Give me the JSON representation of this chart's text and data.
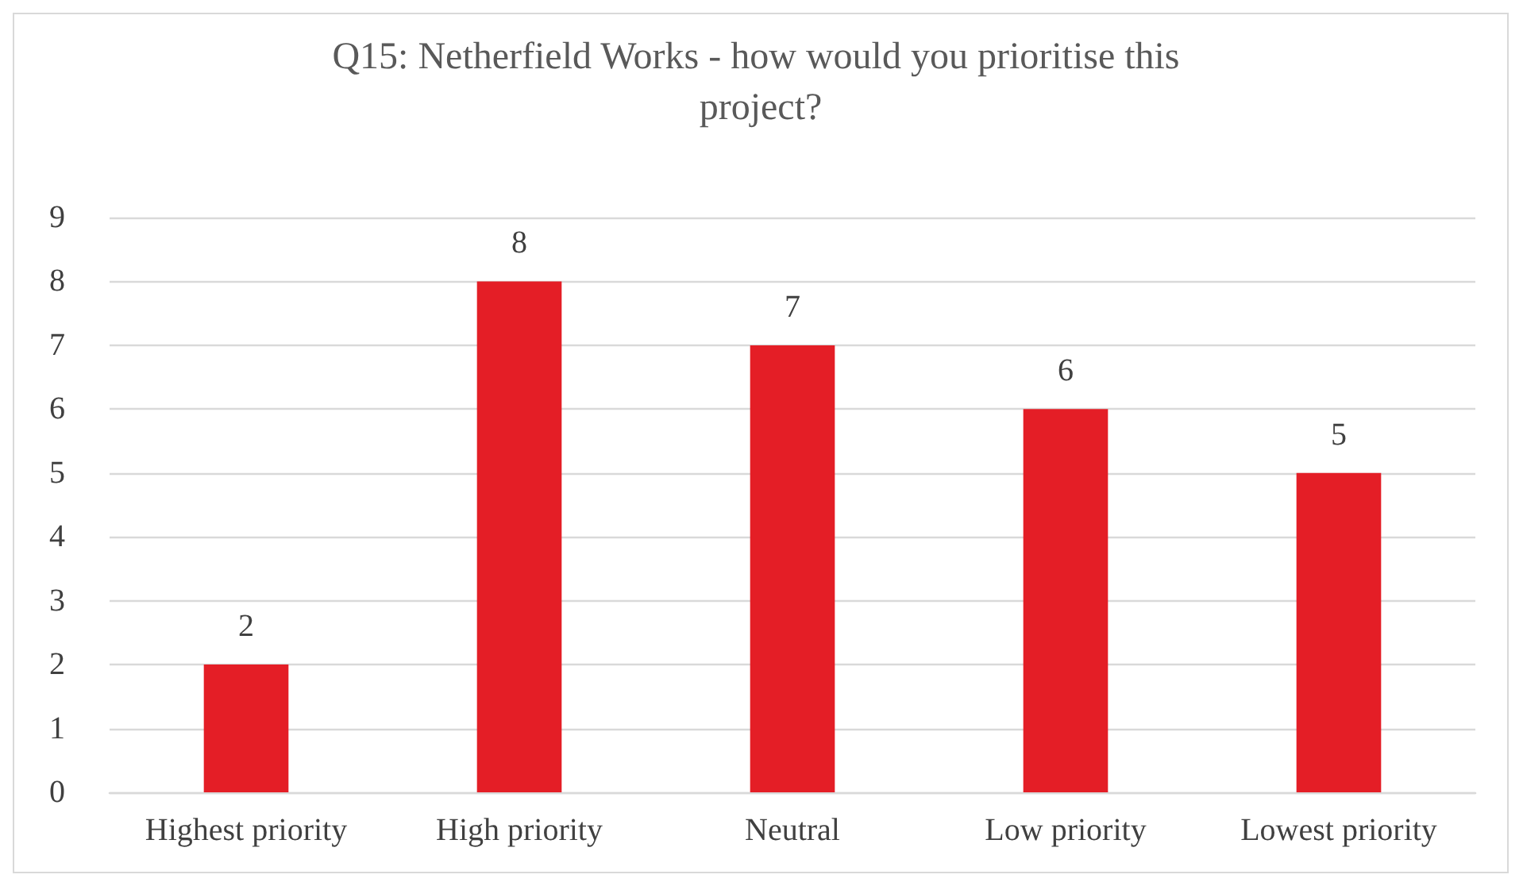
{
  "chart_data": {
    "type": "bar",
    "title": "Q15: Netherfield Works - how would you prioritise this project?",
    "categories": [
      "Highest priority",
      "High priority",
      "Neutral",
      "Low priority",
      "Lowest priority"
    ],
    "values": [
      2,
      8,
      7,
      6,
      5
    ],
    "color": "#e41e26",
    "ylim": [
      0,
      9
    ],
    "yticks": [
      0,
      1,
      2,
      3,
      4,
      5,
      6,
      7,
      8,
      9
    ],
    "grid": "y",
    "data_labels": true
  }
}
